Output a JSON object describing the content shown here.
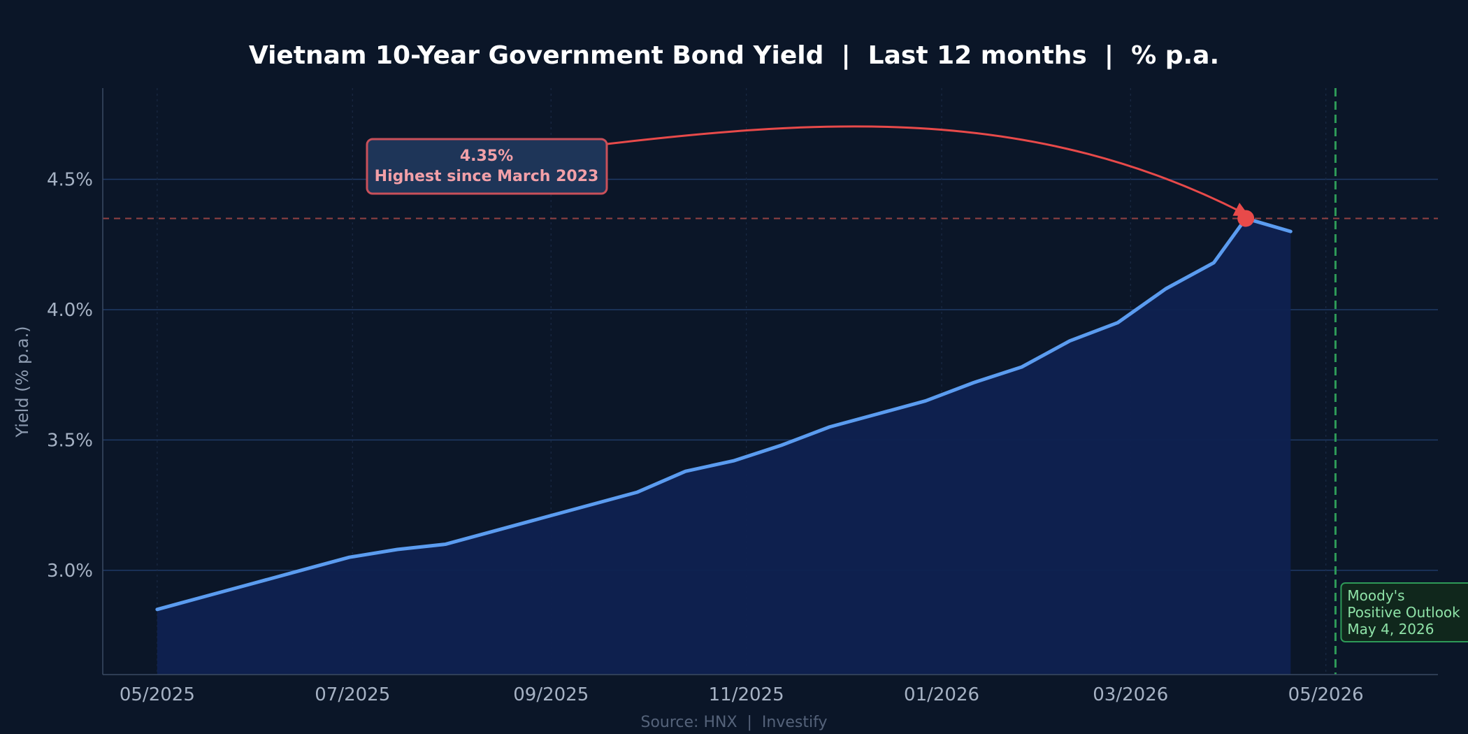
{
  "chart_data": {
    "type": "line",
    "title": "Vietnam 10-Year Government Bond Yield  |  Last 12 months  |  % p.a.",
    "ylabel": "Yield (% p.a.)",
    "xlabel": "",
    "source": "Source: HNX  |  Investify",
    "ylim": [
      2.6,
      4.85
    ],
    "xlim": [
      "2025-04-14",
      "2026-06-05"
    ],
    "y_ticks": [
      3.0,
      3.5,
      4.0,
      4.5
    ],
    "y_tick_labels": [
      "3.0%",
      "3.5%",
      "4.0%",
      "4.5%"
    ],
    "x_ticks": [
      "2025-05-01",
      "2025-07-01",
      "2025-09-01",
      "2025-11-01",
      "2026-01-01",
      "2026-03-01",
      "2026-05-01"
    ],
    "x_tick_labels": [
      "05/2025",
      "07/2025",
      "09/2025",
      "11/2025",
      "01/2026",
      "03/2026",
      "05/2026"
    ],
    "grid": true,
    "series": [
      {
        "color": "#5b9cf0",
        "fill": true,
        "x": [
          "2025-05-01",
          "2025-05-16",
          "2025-05-31",
          "2025-06-15",
          "2025-06-30",
          "2025-07-15",
          "2025-07-30",
          "2025-08-14",
          "2025-08-29",
          "2025-09-13",
          "2025-09-28",
          "2025-10-13",
          "2025-10-28",
          "2025-11-12",
          "2025-11-27",
          "2025-12-12",
          "2025-12-27",
          "2026-01-11",
          "2026-01-26",
          "2026-02-10",
          "2026-02-25",
          "2026-03-12",
          "2026-03-27",
          "2026-04-06",
          "2026-04-20"
        ],
        "y": [
          2.85,
          2.9,
          2.95,
          3.0,
          3.05,
          3.08,
          3.1,
          3.15,
          3.2,
          3.25,
          3.3,
          3.38,
          3.42,
          3.48,
          3.55,
          3.6,
          3.65,
          3.72,
          3.78,
          3.88,
          3.95,
          4.08,
          4.18,
          4.35,
          4.3
        ]
      }
    ],
    "reference_line": {
      "y": 4.35,
      "color": "#c0504d"
    },
    "annotations": [
      {
        "name": "peak",
        "x": "2026-04-06",
        "y": 4.35,
        "value_text": "4.35%",
        "text": "Highest since March 2023",
        "color": "#e84a4a"
      },
      {
        "name": "event",
        "x": "2026-05-04",
        "lines": [
          "Moody's",
          "Positive Outlook",
          "May 4, 2026"
        ],
        "color": "#2e9a58"
      }
    ]
  }
}
